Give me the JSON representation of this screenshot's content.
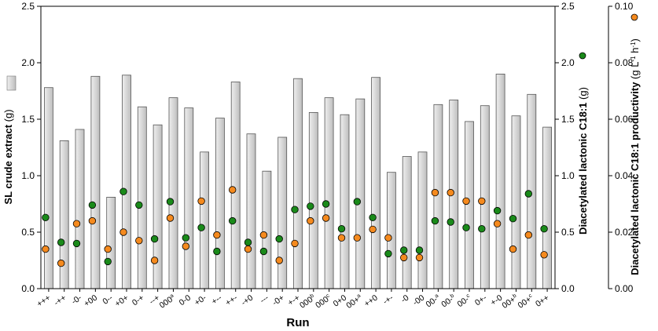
{
  "chart_data": {
    "type": "bar",
    "categories": [
      "+++",
      "-++",
      "-0-",
      "+00",
      "0--",
      "+0+",
      "0-+",
      "--+",
      "000a",
      "0-0",
      "+0-",
      "+--",
      "++-",
      "-+0",
      "---",
      "-0+",
      "+-+",
      "000b",
      "000c",
      "0+0",
      "00+a",
      "++0",
      "-+-",
      "-0",
      "-00",
      "00-a",
      "00-b",
      "00-c",
      "0+-",
      "+-0",
      "00+b",
      "00+c",
      "0++"
    ],
    "category_labels": [
      {
        "base": "+++",
        "sup": ""
      },
      {
        "base": "-++",
        "sup": ""
      },
      {
        "base": "-0-",
        "sup": ""
      },
      {
        "base": "+00",
        "sup": ""
      },
      {
        "base": "0--",
        "sup": ""
      },
      {
        "base": "+0+",
        "sup": ""
      },
      {
        "base": "0-+",
        "sup": ""
      },
      {
        "base": "--+",
        "sup": ""
      },
      {
        "base": "000",
        "sup": "a"
      },
      {
        "base": "0-0",
        "sup": ""
      },
      {
        "base": "+0-",
        "sup": ""
      },
      {
        "base": "+--",
        "sup": ""
      },
      {
        "base": "++-",
        "sup": ""
      },
      {
        "base": "-+0",
        "sup": ""
      },
      {
        "base": "---",
        "sup": ""
      },
      {
        "base": "-0+",
        "sup": ""
      },
      {
        "base": "+-+",
        "sup": ""
      },
      {
        "base": "000",
        "sup": "b"
      },
      {
        "base": "000",
        "sup": "c"
      },
      {
        "base": "0+0",
        "sup": ""
      },
      {
        "base": "00+",
        "sup": "a"
      },
      {
        "base": "++0",
        "sup": ""
      },
      {
        "base": "-+-",
        "sup": ""
      },
      {
        "base": "-0",
        "sup": ""
      },
      {
        "base": "-00",
        "sup": ""
      },
      {
        "base": "00-",
        "sup": "a"
      },
      {
        "base": "00-",
        "sup": "b"
      },
      {
        "base": "00-",
        "sup": "c"
      },
      {
        "base": "0+-",
        "sup": ""
      },
      {
        "base": "+-0",
        "sup": ""
      },
      {
        "base": "00+",
        "sup": "b"
      },
      {
        "base": "00+",
        "sup": "c"
      },
      {
        "base": "0++",
        "sup": ""
      }
    ],
    "series": [
      {
        "name": "SL crude extract",
        "type": "bar",
        "axis": "left",
        "color": "#d4d4d4",
        "values": [
          1.78,
          1.31,
          1.41,
          1.88,
          0.81,
          1.89,
          1.61,
          1.45,
          1.69,
          1.6,
          1.21,
          1.51,
          1.83,
          1.37,
          1.04,
          1.34,
          1.86,
          1.56,
          1.69,
          1.54,
          1.68,
          1.87,
          1.03,
          1.17,
          1.21,
          1.63,
          1.67,
          1.48,
          1.62,
          1.9,
          1.53,
          1.72,
          1.43
        ]
      },
      {
        "name": "Diacetylated lactonic C18:1",
        "type": "scatter",
        "axis": "right1",
        "color": "#1a8a1a",
        "values": [
          0.63,
          0.41,
          0.4,
          0.74,
          0.24,
          0.86,
          0.74,
          0.44,
          0.77,
          0.45,
          0.54,
          0.33,
          0.6,
          0.41,
          0.33,
          0.44,
          0.7,
          0.73,
          0.75,
          0.53,
          0.77,
          0.63,
          0.31,
          0.34,
          0.34,
          0.6,
          0.59,
          0.54,
          0.53,
          0.69,
          0.62,
          0.84,
          0.53
        ]
      },
      {
        "name": "Diacetylated lactonic C18:1 productivity",
        "type": "scatter",
        "axis": "right2",
        "color": "#f58a1e",
        "values": [
          0.014,
          0.009,
          0.023,
          0.024,
          0.014,
          0.02,
          0.017,
          0.01,
          0.025,
          0.015,
          0.031,
          0.019,
          0.035,
          0.014,
          0.019,
          0.01,
          0.016,
          0.024,
          0.025,
          0.018,
          0.018,
          0.021,
          0.018,
          0.011,
          0.011,
          0.034,
          0.034,
          0.031,
          0.031,
          0.023,
          0.014,
          0.019,
          0.012
        ]
      }
    ],
    "xlabel": "Run",
    "ylabel_left": "SL crude extract",
    "ylabel_left_unit": "(g)",
    "ylabel_right1": "Diacetylated lactonic C18:1",
    "ylabel_right1_unit": "(g)",
    "ylabel_right2": "Diacetylated lactonic C18:1 productivity",
    "ylabel_right2_unit_parts": [
      "(g L",
      "-1",
      " h",
      "-1",
      ")"
    ],
    "ylim_left": [
      0,
      2.5
    ],
    "ylim_right1": [
      0,
      2.5
    ],
    "ylim_right2": [
      0,
      0.1
    ],
    "yticks_left": [
      "0.0",
      "0.5",
      "1.0",
      "1.5",
      "2.0",
      "2.5"
    ],
    "yticks_right1": [
      "0.0",
      "0.5",
      "1.0",
      "1.5",
      "2.0",
      "2.5"
    ],
    "yticks_right2": [
      "0.00",
      "0.02",
      "0.04",
      "0.06",
      "0.08",
      "0.10"
    ],
    "grid": false
  }
}
